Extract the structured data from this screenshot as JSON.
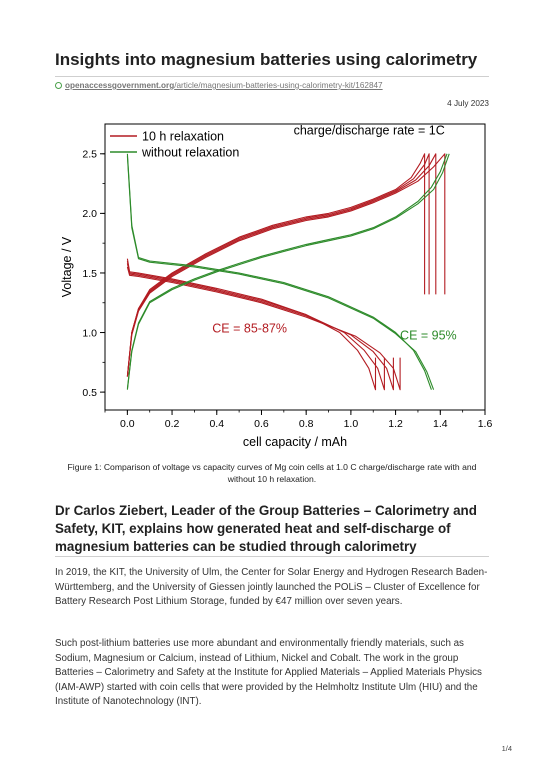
{
  "article": {
    "title": "Insights into magnesium batteries using calorimetry",
    "source_domain": "openaccessgovernment.org",
    "source_path": "/article/magnesium-batteries-using-calorimetry-kit/162847",
    "date": "4 July 2023",
    "caption": "Figure 1: Comparison of voltage vs capacity curves of Mg coin cells at 1.0 C charge/discharge rate with and without 10 h relaxation.",
    "subheading": "Dr Carlos Ziebert, Leader of the Group Batteries – Calorimetry and Safety, KIT, explains how generated heat and self-discharge of magnesium batteries can be studied through calorimetry",
    "paragraphs": [
      "In 2019, the KIT, the University of Ulm, the Center for Solar Energy and Hydrogen Research Baden- Württemberg, and the University of Giessen jointly launched the POLiS – Cluster of Excellence for Battery Research Post Lithium Storage, funded by €47 million over seven years.",
      "Such post-lithium batteries use more abundant and environmentally friendly materials, such as Sodium, Magnesium or Calcium, instead of Lithium, Nickel and Cobalt. The work in the group Batteries – Calorimetry and Safety at the Institute for Applied Materials – Applied Materials Physics (IAM-AWP) started with coin cells that were provided by the Helmholtz Institute Ulm (HIU) and the Institute of Nanotechnology (INT)."
    ],
    "page_number": "1/4"
  },
  "colors": {
    "red": "#b31c22",
    "green": "#2d8b2a"
  },
  "chart_data": {
    "type": "line",
    "xlabel": "cell capacity / mAh",
    "ylabel": "Voltage / V",
    "xlim": [
      -0.1,
      1.6
    ],
    "ylim": [
      0.35,
      2.75
    ],
    "xticks": [
      0.0,
      0.2,
      0.4,
      0.6,
      0.8,
      1.0,
      1.2,
      1.4,
      1.6
    ],
    "yticks": [
      0.5,
      1.0,
      1.5,
      2.0,
      2.5
    ],
    "grid": false,
    "legend_position": "top-left",
    "legend": [
      {
        "label": "10 h relaxation",
        "color": "#b31c22"
      },
      {
        "label": "without relaxation",
        "color": "#2d8b2a"
      }
    ],
    "annotations": [
      {
        "text": "charge/discharge rate = 1C",
        "x": 1.42,
        "y": 2.66,
        "color": "#000000"
      },
      {
        "text": "CE = 85-87%",
        "x": 0.38,
        "y": 1.0,
        "color": "#b31c22"
      },
      {
        "text": "CE = 95%",
        "x": 1.22,
        "y": 0.94,
        "color": "#2d8b2a"
      }
    ],
    "series": [
      {
        "group": "10 h relaxation",
        "color": "#b31c22",
        "kind": "charge",
        "x": [
          0.0,
          0.02,
          0.05,
          0.1,
          0.2,
          0.35,
          0.5,
          0.65,
          0.8,
          0.9,
          1.0,
          1.1,
          1.2,
          1.27,
          1.31,
          1.33,
          1.33
        ],
        "y": [
          0.63,
          1.0,
          1.2,
          1.36,
          1.5,
          1.66,
          1.8,
          1.9,
          1.97,
          2.0,
          2.05,
          2.12,
          2.2,
          2.3,
          2.42,
          2.5,
          1.32
        ]
      },
      {
        "group": "10 h relaxation",
        "color": "#b31c22",
        "kind": "charge",
        "x": [
          0.0,
          0.02,
          0.05,
          0.1,
          0.2,
          0.35,
          0.5,
          0.65,
          0.8,
          0.9,
          1.0,
          1.1,
          1.2,
          1.28,
          1.33,
          1.35,
          1.35
        ],
        "y": [
          0.63,
          1.0,
          1.2,
          1.35,
          1.49,
          1.65,
          1.79,
          1.89,
          1.96,
          1.99,
          2.04,
          2.11,
          2.19,
          2.29,
          2.41,
          2.5,
          1.32
        ]
      },
      {
        "group": "10 h relaxation",
        "color": "#b31c22",
        "kind": "charge",
        "x": [
          0.0,
          0.02,
          0.05,
          0.1,
          0.2,
          0.35,
          0.5,
          0.65,
          0.8,
          0.9,
          1.0,
          1.1,
          1.2,
          1.29,
          1.35,
          1.38,
          1.38
        ],
        "y": [
          0.63,
          1.0,
          1.19,
          1.34,
          1.48,
          1.64,
          1.78,
          1.88,
          1.95,
          1.98,
          2.03,
          2.1,
          2.18,
          2.28,
          2.4,
          2.5,
          1.32
        ]
      },
      {
        "group": "10 h relaxation",
        "color": "#b31c22",
        "kind": "charge",
        "x": [
          0.0,
          0.02,
          0.05,
          0.1,
          0.2,
          0.35,
          0.5,
          0.65,
          0.8,
          0.9,
          1.0,
          1.1,
          1.2,
          1.3,
          1.37,
          1.42,
          1.42
        ],
        "y": [
          0.63,
          0.98,
          1.18,
          1.33,
          1.47,
          1.63,
          1.77,
          1.87,
          1.94,
          1.97,
          2.02,
          2.09,
          2.17,
          2.27,
          2.39,
          2.5,
          1.32
        ]
      },
      {
        "group": "10 h relaxation",
        "color": "#b31c22",
        "kind": "discharge",
        "x": [
          0.0,
          0.01,
          0.05,
          0.2,
          0.4,
          0.6,
          0.8,
          0.95,
          1.03,
          1.08,
          1.11,
          1.11
        ],
        "y": [
          1.62,
          1.51,
          1.5,
          1.45,
          1.37,
          1.28,
          1.15,
          1.0,
          0.85,
          0.7,
          0.52,
          0.79
        ]
      },
      {
        "group": "10 h relaxation",
        "color": "#b31c22",
        "kind": "discharge",
        "x": [
          0.0,
          0.01,
          0.05,
          0.2,
          0.4,
          0.6,
          0.8,
          0.97,
          1.06,
          1.12,
          1.15,
          1.15
        ],
        "y": [
          1.6,
          1.5,
          1.49,
          1.44,
          1.36,
          1.27,
          1.15,
          1.0,
          0.85,
          0.7,
          0.52,
          0.79
        ]
      },
      {
        "group": "10 h relaxation",
        "color": "#b31c22",
        "kind": "discharge",
        "x": [
          0.0,
          0.01,
          0.05,
          0.2,
          0.4,
          0.6,
          0.8,
          1.0,
          1.1,
          1.16,
          1.19,
          1.19
        ],
        "y": [
          1.58,
          1.49,
          1.48,
          1.43,
          1.35,
          1.26,
          1.14,
          0.98,
          0.84,
          0.7,
          0.52,
          0.79
        ]
      },
      {
        "group": "10 h relaxation",
        "color": "#b31c22",
        "kind": "discharge",
        "x": [
          0.0,
          0.01,
          0.05,
          0.2,
          0.4,
          0.6,
          0.8,
          1.02,
          1.13,
          1.19,
          1.22,
          1.22
        ],
        "y": [
          1.55,
          1.48,
          1.47,
          1.42,
          1.34,
          1.25,
          1.13,
          0.97,
          0.83,
          0.7,
          0.52,
          0.79
        ]
      },
      {
        "group": "without relaxation",
        "color": "#2d8b2a",
        "kind": "charge",
        "x": [
          0.0,
          0.02,
          0.05,
          0.1,
          0.2,
          0.3,
          0.4,
          0.5,
          0.6,
          0.7,
          0.8,
          0.9,
          1.0,
          1.1,
          1.2,
          1.3,
          1.36,
          1.4,
          1.43
        ],
        "y": [
          0.53,
          0.85,
          1.08,
          1.26,
          1.37,
          1.45,
          1.52,
          1.58,
          1.64,
          1.69,
          1.74,
          1.78,
          1.82,
          1.88,
          1.97,
          2.1,
          2.22,
          2.35,
          2.5
        ]
      },
      {
        "group": "without relaxation",
        "color": "#2d8b2a",
        "kind": "charge",
        "x": [
          0.0,
          0.02,
          0.05,
          0.1,
          0.2,
          0.3,
          0.4,
          0.5,
          0.6,
          0.7,
          0.8,
          0.9,
          1.0,
          1.1,
          1.2,
          1.3,
          1.37,
          1.41,
          1.44
        ],
        "y": [
          0.52,
          0.84,
          1.07,
          1.25,
          1.36,
          1.44,
          1.51,
          1.57,
          1.63,
          1.68,
          1.73,
          1.77,
          1.81,
          1.87,
          1.96,
          2.08,
          2.2,
          2.34,
          2.5
        ]
      },
      {
        "group": "without relaxation",
        "color": "#2d8b2a",
        "kind": "discharge",
        "x": [
          0.0,
          0.02,
          0.05,
          0.1,
          0.3,
          0.5,
          0.7,
          0.9,
          1.1,
          1.2,
          1.28,
          1.33,
          1.36
        ],
        "y": [
          2.5,
          1.9,
          1.63,
          1.6,
          1.56,
          1.5,
          1.42,
          1.3,
          1.13,
          1.0,
          0.85,
          0.68,
          0.52
        ]
      },
      {
        "group": "without relaxation",
        "color": "#2d8b2a",
        "kind": "discharge",
        "x": [
          0.0,
          0.02,
          0.05,
          0.1,
          0.3,
          0.5,
          0.7,
          0.9,
          1.1,
          1.2,
          1.29,
          1.34,
          1.37
        ],
        "y": [
          2.48,
          1.88,
          1.62,
          1.59,
          1.55,
          1.49,
          1.41,
          1.29,
          1.12,
          0.99,
          0.84,
          0.67,
          0.52
        ]
      }
    ]
  }
}
